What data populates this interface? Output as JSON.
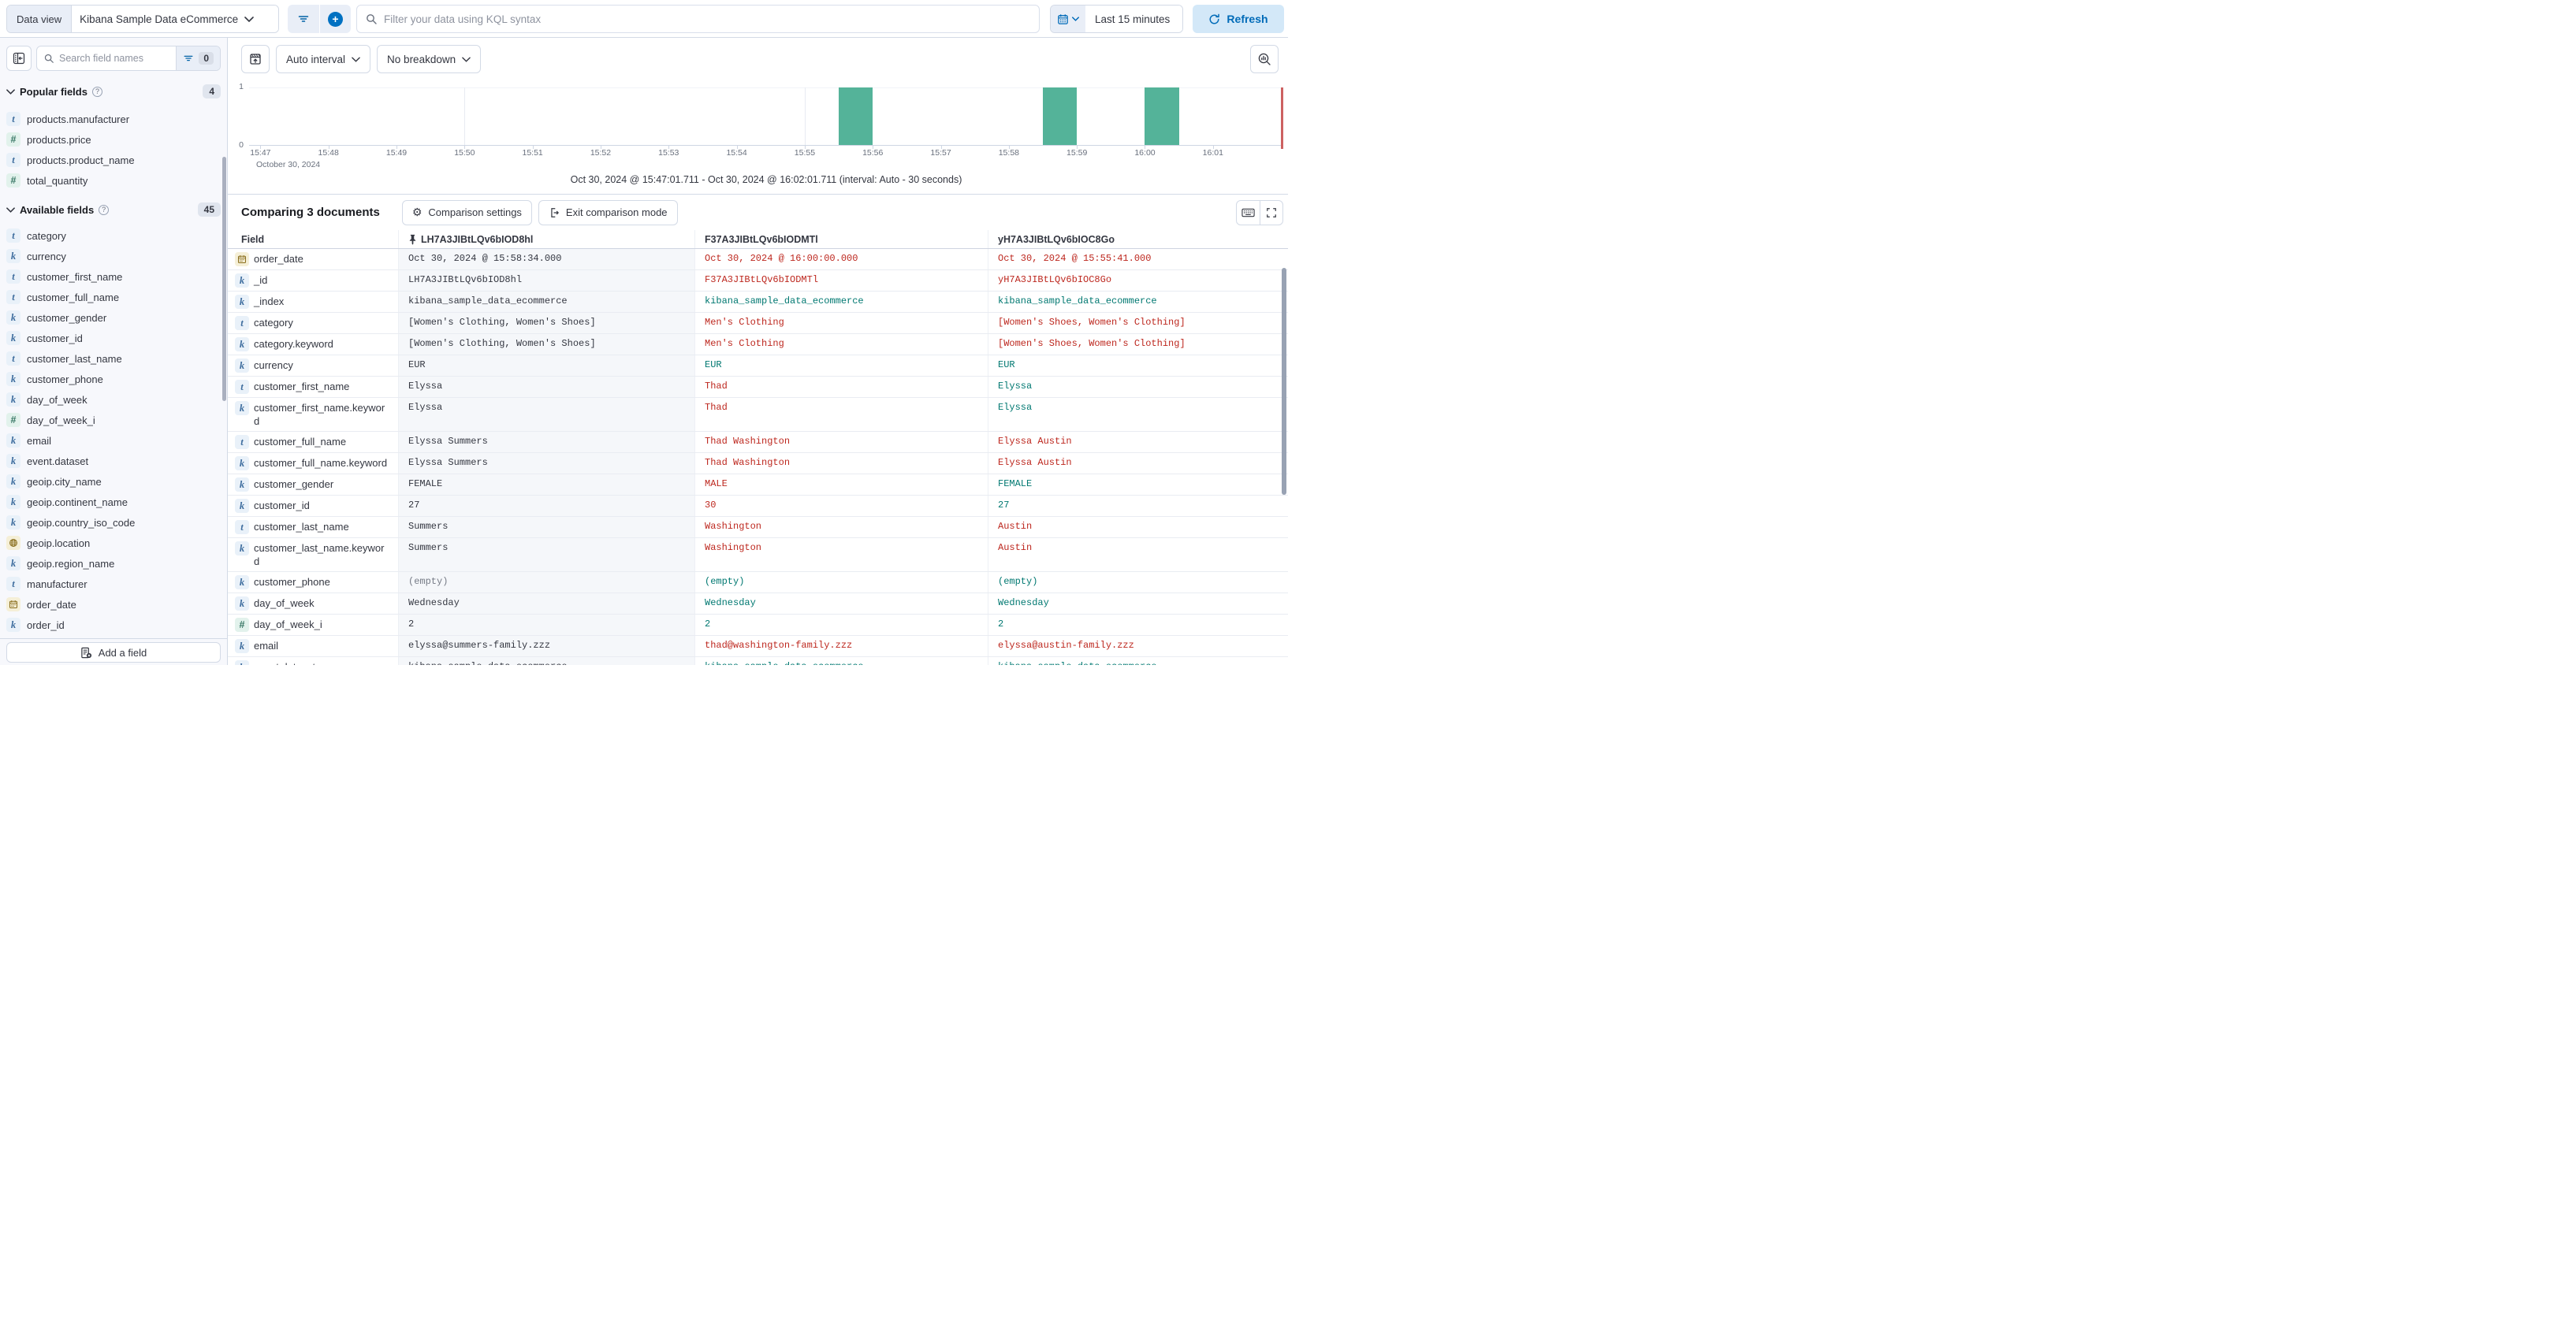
{
  "topbar": {
    "data_view_label": "Data view",
    "data_view_value": "Kibana Sample Data eCommerce",
    "kql_placeholder": "Filter your data using KQL syntax",
    "time_range": "Last 15 minutes",
    "refresh_label": "Refresh"
  },
  "sidebar": {
    "search_placeholder": "Search field names",
    "filter_count": "0",
    "popular": {
      "title": "Popular fields",
      "count": "4",
      "items": [
        {
          "name": "products.manufacturer",
          "type": "text"
        },
        {
          "name": "products.price",
          "type": "number"
        },
        {
          "name": "products.product_name",
          "type": "text"
        },
        {
          "name": "total_quantity",
          "type": "number"
        }
      ]
    },
    "available": {
      "title": "Available fields",
      "count": "45",
      "items": [
        {
          "name": "category",
          "type": "text"
        },
        {
          "name": "currency",
          "type": "keyword"
        },
        {
          "name": "customer_first_name",
          "type": "text"
        },
        {
          "name": "customer_full_name",
          "type": "text"
        },
        {
          "name": "customer_gender",
          "type": "keyword"
        },
        {
          "name": "customer_id",
          "type": "keyword"
        },
        {
          "name": "customer_last_name",
          "type": "text"
        },
        {
          "name": "customer_phone",
          "type": "keyword"
        },
        {
          "name": "day_of_week",
          "type": "keyword"
        },
        {
          "name": "day_of_week_i",
          "type": "number"
        },
        {
          "name": "email",
          "type": "keyword"
        },
        {
          "name": "event.dataset",
          "type": "keyword"
        },
        {
          "name": "geoip.city_name",
          "type": "keyword"
        },
        {
          "name": "geoip.continent_name",
          "type": "keyword"
        },
        {
          "name": "geoip.country_iso_code",
          "type": "keyword"
        },
        {
          "name": "geoip.location",
          "type": "geo"
        },
        {
          "name": "geoip.region_name",
          "type": "keyword"
        },
        {
          "name": "manufacturer",
          "type": "text"
        },
        {
          "name": "order_date",
          "type": "date"
        },
        {
          "name": "order_id",
          "type": "keyword"
        }
      ]
    },
    "add_field_label": "Add a field"
  },
  "chart": {
    "auto_interval_label": "Auto interval",
    "breakdown_label": "No breakdown",
    "caption": "Oct 30, 2024 @ 15:47:01.711 - Oct 30, 2024 @ 16:02:01.711 (interval: Auto - 30 seconds)"
  },
  "chart_data": {
    "type": "bar",
    "title": "Documents over time histogram",
    "x_domain": [
      "15:46:50",
      "16:02:02"
    ],
    "x_ticks": [
      "15:47",
      "15:48",
      "15:49",
      "15:50",
      "15:51",
      "15:52",
      "15:53",
      "15:54",
      "15:55",
      "15:56",
      "15:57",
      "15:58",
      "15:59",
      "16:00",
      "16:01"
    ],
    "x_context": "October 30, 2024",
    "y_ticks": [
      "1",
      "0"
    ],
    "ylim": [
      0,
      1
    ],
    "bars": [
      {
        "start": "15:55:30",
        "end": "15:56:00",
        "value": 1
      },
      {
        "start": "15:58:30",
        "end": "15:59:00",
        "value": 1
      },
      {
        "start": "16:00:00",
        "end": "16:00:30",
        "value": 1
      }
    ],
    "gridlines": [
      "15:50",
      "15:55",
      "16:00"
    ],
    "now_marker": "16:02:00",
    "bar_color": "#54b399",
    "now_color": "#cd6161",
    "legend": "off"
  },
  "comparison": {
    "title": "Comparing 3 documents",
    "settings_label": "Comparison settings",
    "exit_label": "Exit comparison mode"
  },
  "grid": {
    "field_header": "Field",
    "columns": [
      {
        "id": "LH7A3JIBtLQv6bIOD8hl",
        "pinned": true
      },
      {
        "id": "F37A3JIBtLQv6bIODMTl",
        "pinned": false
      },
      {
        "id": "yH7A3JIBtLQv6bIOC8Go",
        "pinned": false
      }
    ],
    "rows": [
      {
        "field": "order_date",
        "type": "date",
        "cells": [
          {
            "t": "Oct 30, 2024 @ 15:58:34.000",
            "tone": "base"
          },
          {
            "t": "Oct 30, 2024 @ 16:00:00.000",
            "tone": "diff"
          },
          {
            "t": "Oct 30, 2024 @ 15:55:41.000",
            "tone": "diff"
          }
        ]
      },
      {
        "field": "_id",
        "type": "keyword",
        "cells": [
          {
            "t": "LH7A3JIBtLQv6bIOD8hl",
            "tone": "base"
          },
          {
            "t": "F37A3JIBtLQv6bIODMTl",
            "tone": "diff"
          },
          {
            "t": "yH7A3JIBtLQv6bIOC8Go",
            "tone": "diff"
          }
        ]
      },
      {
        "field": "_index",
        "type": "keyword",
        "cells": [
          {
            "t": "kibana_sample_data_ecommerce",
            "tone": "base"
          },
          {
            "t": "kibana_sample_data_ecommerce",
            "tone": "match"
          },
          {
            "t": "kibana_sample_data_ecommerce",
            "tone": "match"
          }
        ]
      },
      {
        "field": "category",
        "type": "text",
        "cells": [
          {
            "t": "[Women's Clothing, Women's Shoes]",
            "tone": "base"
          },
          {
            "t": "Men's Clothing",
            "tone": "diff"
          },
          {
            "t": "[Women's Shoes, Women's Clothing]",
            "tone": "diff"
          }
        ]
      },
      {
        "field": "category.keyword",
        "type": "keyword",
        "cells": [
          {
            "t": "[Women's Clothing, Women's Shoes]",
            "tone": "base"
          },
          {
            "t": "Men's Clothing",
            "tone": "diff"
          },
          {
            "t": "[Women's Shoes, Women's Clothing]",
            "tone": "diff"
          }
        ]
      },
      {
        "field": "currency",
        "type": "keyword",
        "cells": [
          {
            "t": "EUR",
            "tone": "base"
          },
          {
            "t": "EUR",
            "tone": "match"
          },
          {
            "t": "EUR",
            "tone": "match"
          }
        ]
      },
      {
        "field": "customer_first_name",
        "type": "text",
        "cells": [
          {
            "t": "Elyssa",
            "tone": "base"
          },
          {
            "t": "Thad",
            "tone": "diff"
          },
          {
            "t": "Elyssa",
            "tone": "match"
          }
        ]
      },
      {
        "field": "customer_first_name.keyword",
        "type": "keyword",
        "cells": [
          {
            "t": "Elyssa",
            "tone": "base"
          },
          {
            "t": "Thad",
            "tone": "diff"
          },
          {
            "t": "Elyssa",
            "tone": "match"
          }
        ]
      },
      {
        "field": "customer_full_name",
        "type": "text",
        "cells": [
          {
            "t": "Elyssa Summers",
            "tone": "base"
          },
          {
            "t": "Thad Washington",
            "tone": "diff"
          },
          {
            "t": "Elyssa Austin",
            "tone": "diff"
          }
        ]
      },
      {
        "field": "customer_full_name.keyword",
        "type": "keyword",
        "cells": [
          {
            "t": "Elyssa Summers",
            "tone": "base"
          },
          {
            "t": "Thad Washington",
            "tone": "diff"
          },
          {
            "t": "Elyssa Austin",
            "tone": "diff"
          }
        ]
      },
      {
        "field": "customer_gender",
        "type": "keyword",
        "cells": [
          {
            "t": "FEMALE",
            "tone": "base"
          },
          {
            "t": "MALE",
            "tone": "diff"
          },
          {
            "t": "FEMALE",
            "tone": "match"
          }
        ]
      },
      {
        "field": "customer_id",
        "type": "keyword",
        "cells": [
          {
            "t": "27",
            "tone": "base"
          },
          {
            "t": "30",
            "tone": "diff"
          },
          {
            "t": "27",
            "tone": "match"
          }
        ]
      },
      {
        "field": "customer_last_name",
        "type": "text",
        "cells": [
          {
            "t": "Summers",
            "tone": "base"
          },
          {
            "t": "Washington",
            "tone": "diff"
          },
          {
            "t": "Austin",
            "tone": "diff"
          }
        ]
      },
      {
        "field": "customer_last_name.keyword",
        "type": "keyword",
        "cells": [
          {
            "t": "Summers",
            "tone": "base"
          },
          {
            "t": "Washington",
            "tone": "diff"
          },
          {
            "t": "Austin",
            "tone": "diff"
          }
        ]
      },
      {
        "field": "customer_phone",
        "type": "keyword",
        "cells": [
          {
            "t": "(empty)",
            "tone": "muted"
          },
          {
            "t": "(empty)",
            "tone": "match"
          },
          {
            "t": "(empty)",
            "tone": "match"
          }
        ]
      },
      {
        "field": "day_of_week",
        "type": "keyword",
        "cells": [
          {
            "t": "Wednesday",
            "tone": "base"
          },
          {
            "t": "Wednesday",
            "tone": "match"
          },
          {
            "t": "Wednesday",
            "tone": "match"
          }
        ]
      },
      {
        "field": "day_of_week_i",
        "type": "number",
        "cells": [
          {
            "t": "2",
            "tone": "base"
          },
          {
            "t": "2",
            "tone": "match"
          },
          {
            "t": "2",
            "tone": "match"
          }
        ]
      },
      {
        "field": "email",
        "type": "keyword",
        "cells": [
          {
            "t": "elyssa@summers-family.zzz",
            "tone": "base"
          },
          {
            "t": "thad@washington-family.zzz",
            "tone": "diff"
          },
          {
            "t": "elyssa@austin-family.zzz",
            "tone": "diff"
          }
        ]
      },
      {
        "field": "event.dataset",
        "type": "keyword",
        "cells": [
          {
            "t": "kibana_sample_data_ecommerce",
            "tone": "base"
          },
          {
            "t": "kibana_sample_data_ecommerce",
            "tone": "match"
          },
          {
            "t": "kibana_sample_data_ecommerce",
            "tone": "match"
          }
        ]
      }
    ]
  }
}
